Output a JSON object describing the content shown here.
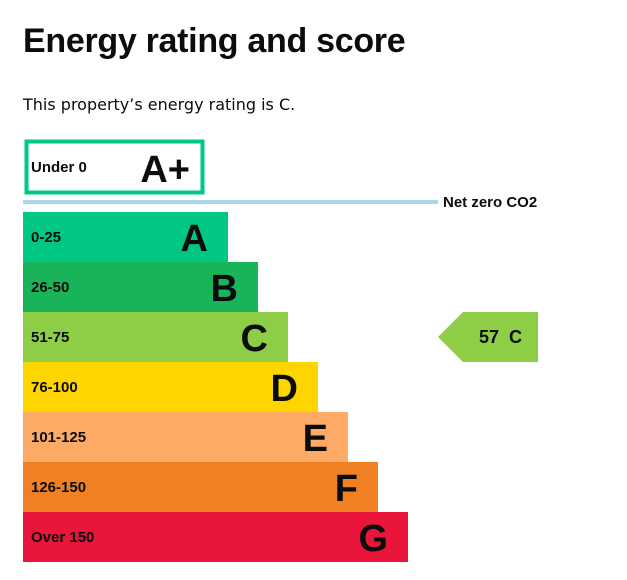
{
  "heading": "Energy rating and score",
  "intro": "This property’s energy rating is C.",
  "chart_data": {
    "type": "bar",
    "orientation": "horizontal",
    "top_band": {
      "range": "Under 0",
      "letter": "A+",
      "color": "#00c781"
    },
    "net_zero_label": "Net zero CO2",
    "net_zero_line_color": "#a8d8e5",
    "bands": [
      {
        "range": "0-25",
        "letter": "A",
        "color": "#00c781",
        "text_color": "#0b0c0c"
      },
      {
        "range": "26-50",
        "letter": "B",
        "color": "#19b459",
        "text_color": "#0b0c0c"
      },
      {
        "range": "51-75",
        "letter": "C",
        "color": "#8dce46",
        "text_color": "#0b0c0c"
      },
      {
        "range": "76-100",
        "letter": "D",
        "color": "#ffd500",
        "text_color": "#0b0c0c"
      },
      {
        "range": "101-125",
        "letter": "E",
        "color": "#fcaa65",
        "text_color": "#0b0c0c"
      },
      {
        "range": "126-150",
        "letter": "F",
        "color": "#ef8023",
        "text_color": "#0b0c0c"
      },
      {
        "range": "Over 150",
        "letter": "G",
        "color": "#e9153b",
        "text_color": "#0b0c0c"
      }
    ],
    "current": {
      "score": 57,
      "rating": "C",
      "label": "57  C",
      "color": "#8dce46"
    }
  }
}
